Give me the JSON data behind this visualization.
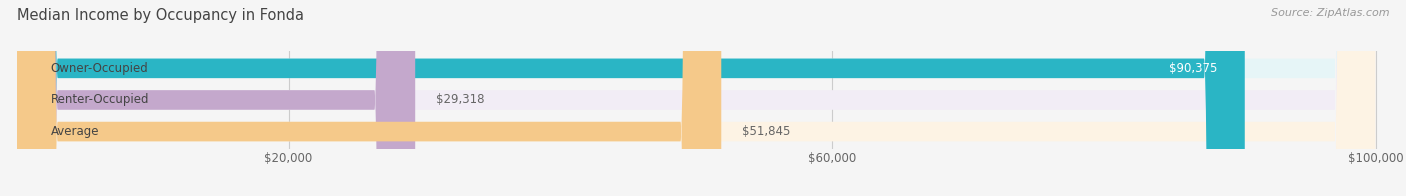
{
  "title": "Median Income by Occupancy in Fonda",
  "source": "Source: ZipAtlas.com",
  "categories": [
    "Owner-Occupied",
    "Renter-Occupied",
    "Average"
  ],
  "values": [
    90375,
    29318,
    51845
  ],
  "bar_colors": [
    "#2AB5C5",
    "#C4A8CC",
    "#F5C98A"
  ],
  "bg_colors": [
    "#E6F5F7",
    "#F2EDF6",
    "#FDF3E4"
  ],
  "value_labels": [
    "$90,375",
    "$29,318",
    "$51,845"
  ],
  "value_label_colors": [
    "#ffffff",
    "#666666",
    "#666666"
  ],
  "xlim": [
    0,
    100000
  ],
  "xticks": [
    20000,
    60000,
    100000
  ],
  "xtick_labels": [
    "$20,000",
    "$60,000",
    "$100,000"
  ],
  "figure_bg": "#f5f5f5",
  "bar_height": 0.62,
  "title_fontsize": 10.5,
  "label_fontsize": 8.5,
  "value_fontsize": 8.5,
  "source_fontsize": 8,
  "cat_label_color": "#444444",
  "grid_color": "#cccccc"
}
